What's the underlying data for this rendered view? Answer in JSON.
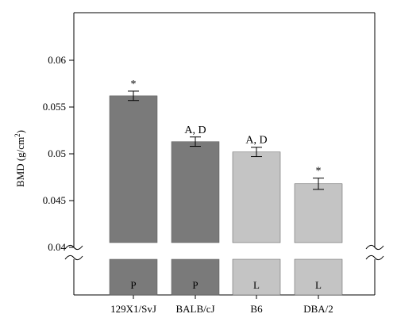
{
  "chart_data": {
    "type": "bar",
    "title": "",
    "xlabel": "",
    "ylabel": "BMD (g/cm",
    "ylabel_sup": "2",
    "ylabel_close": ")",
    "ylim": [
      0.04,
      0.06
    ],
    "yticks": [
      "0.04",
      "0.045",
      "0.05",
      "0.055",
      "0.06"
    ],
    "ytick_values": [
      0.04,
      0.045,
      0.05,
      0.055,
      0.06
    ],
    "axis_break": true,
    "categories": [
      "129X1/SvJ",
      "BALB/cJ",
      "B6",
      "DBA/2"
    ],
    "values": [
      0.0562,
      0.0513,
      0.0502,
      0.0468
    ],
    "errors": [
      0.0005,
      0.0005,
      0.0005,
      0.0006
    ],
    "annotations": [
      "*",
      "A, D",
      "A, D",
      "*"
    ],
    "bar_labels": [
      "P",
      "P",
      "L",
      "L"
    ],
    "colors": {
      "P": "#7a7a7a",
      "L": "#c4c4c4"
    },
    "bar_color_keys": [
      "P",
      "P",
      "L",
      "L"
    ],
    "grid": false,
    "legend": "none"
  }
}
